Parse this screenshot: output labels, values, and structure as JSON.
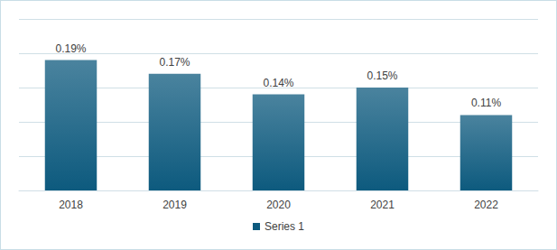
{
  "chart_data": {
    "type": "bar",
    "categories": [
      "2018",
      "2019",
      "2020",
      "2021",
      "2022"
    ],
    "series": [
      {
        "name": "Series 1",
        "color": "#0d5a7e",
        "values": [
          0.19,
          0.17,
          0.14,
          0.15,
          0.11
        ],
        "value_labels": [
          "0.19%",
          "0.17%",
          "0.14%",
          "0.15%",
          "0.11%"
        ]
      }
    ],
    "ylim": [
      0,
      0.25
    ],
    "yticks": [
      0,
      0.05,
      0.1,
      0.15,
      0.2,
      0.25
    ],
    "grid": true,
    "legend": "bottom",
    "data_labels": true,
    "tick_labels": "x"
  }
}
